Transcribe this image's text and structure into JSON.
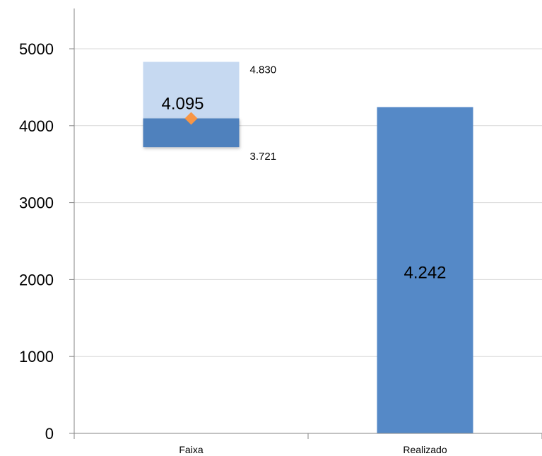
{
  "chart_data": {
    "type": "bar",
    "categories": [
      "Faixa",
      "Realizado"
    ],
    "ylim": [
      0,
      5000
    ],
    "yticks": [
      0,
      1000,
      2000,
      3000,
      4000,
      5000
    ],
    "ytick_labels": [
      "0",
      "1000",
      "2000",
      "3000",
      "4000",
      "5000"
    ],
    "grid": true,
    "range": {
      "category": "Faixa",
      "low": 3721,
      "high": 4830,
      "target": 4095,
      "low_label": "3.721",
      "high_label": "4.830",
      "target_label": "4.095"
    },
    "actual": {
      "category": "Realizado",
      "value": 4242,
      "label": "4.242"
    },
    "colors": {
      "range_upper": "#c6d9f1",
      "range_lower": "#4f81bd",
      "actual_bar": "#5589c7",
      "target_marker": "#f79646",
      "grid": "#d9d9d9",
      "axis": "#868686"
    }
  }
}
